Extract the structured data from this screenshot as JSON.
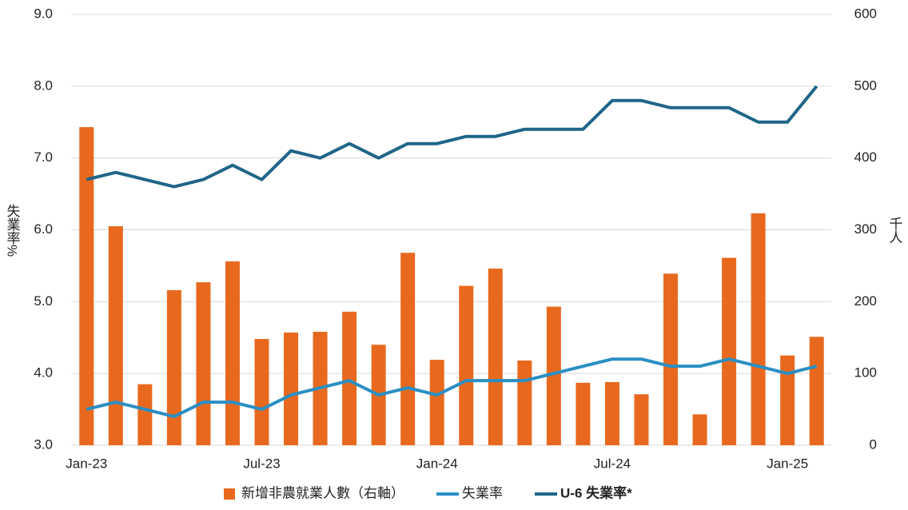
{
  "chart_data": {
    "type": "bar",
    "categories": [
      "Jan-23",
      null,
      null,
      null,
      null,
      null,
      "Jul-23",
      null,
      null,
      null,
      null,
      null,
      "Jan-24",
      null,
      null,
      null,
      null,
      null,
      "Jul-24",
      null,
      null,
      null,
      null,
      null,
      "Jan-25",
      null
    ],
    "ylabel": "失業率%",
    "y2label": "千人",
    "ylim": [
      3.0,
      9.0
    ],
    "yticks": [
      {
        "value": 3,
        "label": "3.0"
      },
      {
        "value": 4,
        "label": "4.0"
      },
      {
        "value": 5,
        "label": "5.0"
      },
      {
        "value": 6,
        "label": "6.0"
      },
      {
        "value": 7,
        "label": "7.0"
      },
      {
        "value": 8,
        "label": "8.0"
      },
      {
        "value": 9,
        "label": "9.0"
      }
    ],
    "y2lim": [
      0,
      600
    ],
    "y2ticks": [
      0,
      100,
      200,
      300,
      400,
      500,
      600
    ],
    "grid": true,
    "legend": "bottom",
    "series": [
      {
        "name": "新增非農就業人數（右軸）",
        "type": "bar",
        "axis": "y2",
        "color": "#e8691e",
        "values": [
          443,
          305,
          85,
          216,
          227,
          256,
          148,
          157,
          158,
          186,
          140,
          268,
          119,
          222,
          246,
          118,
          193,
          87,
          88,
          71,
          239,
          43,
          261,
          323,
          125,
          151
        ]
      },
      {
        "name": "失業率",
        "type": "line",
        "color": "#2b8fc4",
        "values": [
          3.5,
          3.6,
          3.5,
          3.4,
          3.6,
          3.6,
          3.5,
          3.7,
          3.8,
          3.9,
          3.7,
          3.8,
          3.7,
          3.9,
          3.9,
          3.9,
          4.0,
          4.1,
          4.2,
          4.2,
          4.1,
          4.1,
          4.2,
          4.1,
          4.0,
          4.1
        ]
      },
      {
        "name": "U-6 失業率*",
        "type": "line",
        "color": "#1f6589",
        "values": [
          6.7,
          6.8,
          6.7,
          6.6,
          6.7,
          6.9,
          6.7,
          7.1,
          7.0,
          7.2,
          7.0,
          7.2,
          7.2,
          7.3,
          7.3,
          7.4,
          7.4,
          7.4,
          7.8,
          7.8,
          7.7,
          7.7,
          7.7,
          7.5,
          7.5,
          8.0
        ]
      }
    ]
  }
}
